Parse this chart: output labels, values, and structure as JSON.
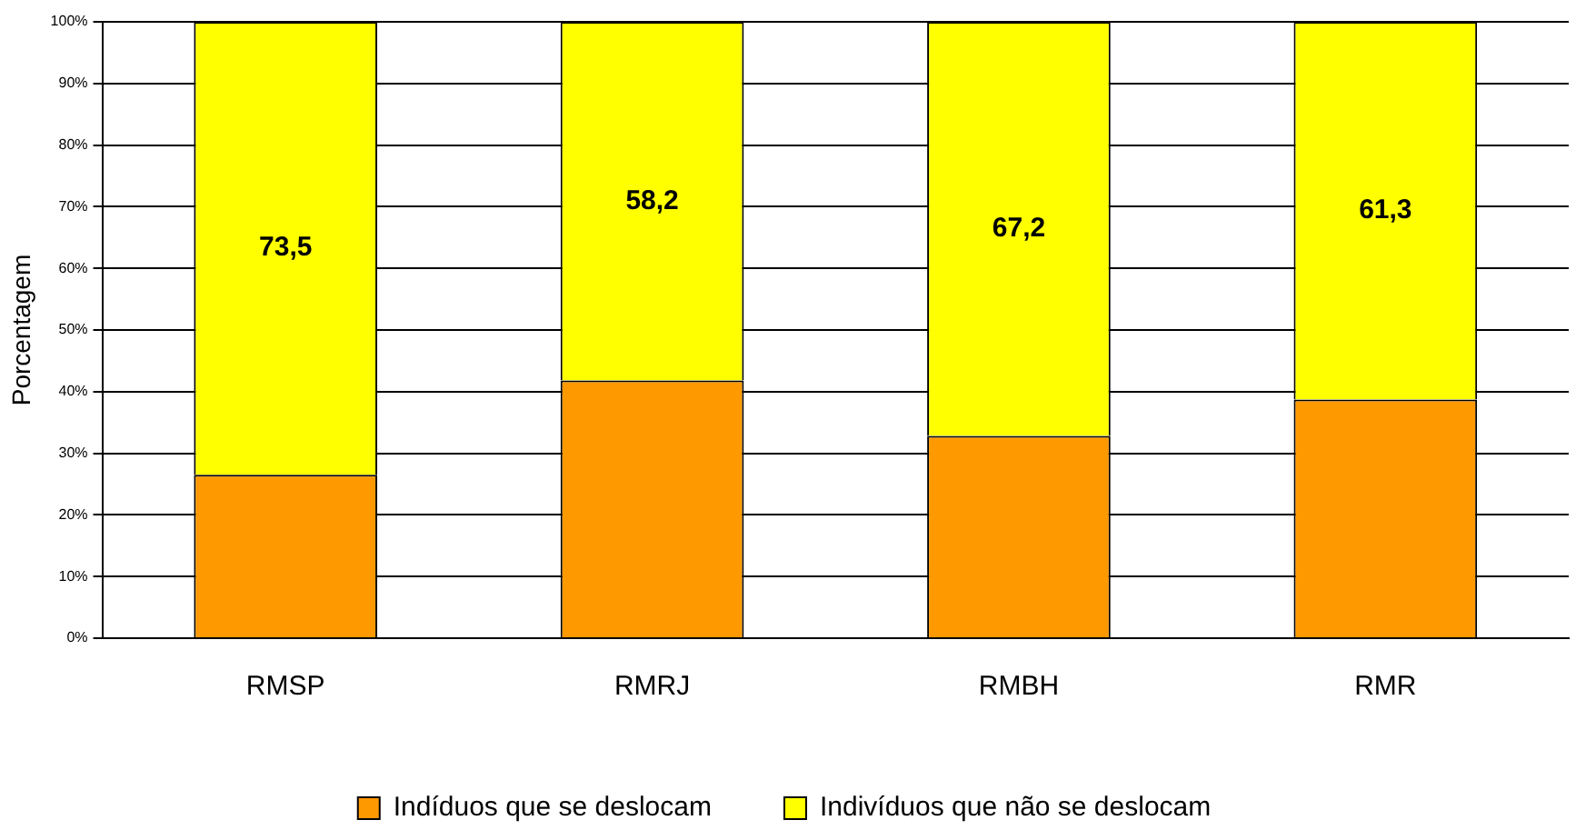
{
  "chart_data": {
    "type": "bar",
    "stacked": true,
    "ylabel": "Porcentagem",
    "categories": [
      "RMSP",
      "RMRJ",
      "RMBH",
      "RMR"
    ],
    "series": [
      {
        "name": "Indíduos que se deslocam",
        "color": "#ff9900",
        "values": [
          26.5,
          41.8,
          32.8,
          38.7
        ]
      },
      {
        "name": "Indivíduos que não se deslocam",
        "color": "#ffff00",
        "values": [
          73.5,
          58.2,
          67.2,
          61.3
        ],
        "value_labels": [
          "73,5",
          "58,2",
          "67,2",
          "61,3"
        ]
      }
    ],
    "ylim": [
      0,
      100
    ],
    "yticks": [
      {
        "value": 0,
        "label": "0%"
      },
      {
        "value": 10,
        "label": "10%"
      },
      {
        "value": 20,
        "label": "20%"
      },
      {
        "value": 30,
        "label": "30%"
      },
      {
        "value": 40,
        "label": "40%"
      },
      {
        "value": 50,
        "label": "50%"
      },
      {
        "value": 60,
        "label": "60%"
      },
      {
        "value": 70,
        "label": "70%"
      },
      {
        "value": 80,
        "label": "80%"
      },
      {
        "value": 90,
        "label": "90%"
      },
      {
        "value": 100,
        "label": "100%"
      }
    ],
    "grid": "y",
    "legend": "bottom"
  }
}
